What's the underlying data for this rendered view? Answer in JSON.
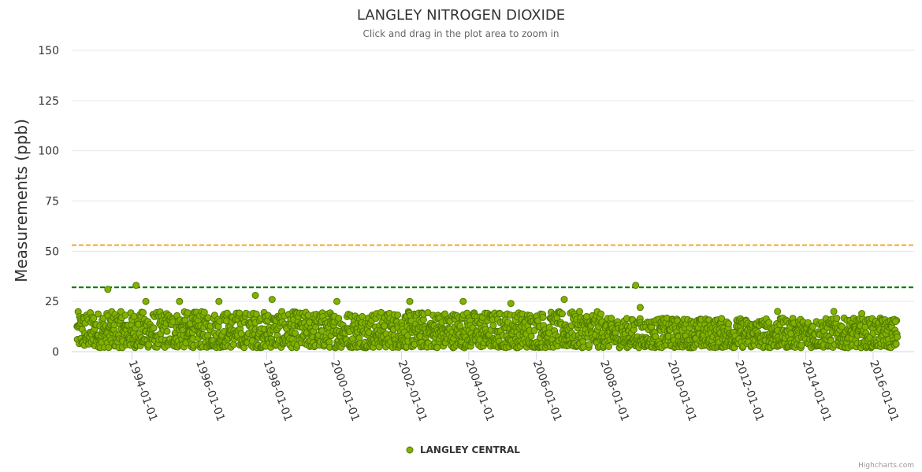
{
  "chart_data": {
    "type": "scatter",
    "title": "LANGLEY NITROGEN DIOXIDE",
    "subtitle": "Click and drag in the plot area to zoom in",
    "ylabel": "Measurements (ppb)",
    "xlabel": "",
    "ylim": [
      0,
      150
    ],
    "yticks": [
      0,
      25,
      50,
      75,
      100,
      125,
      150
    ],
    "xlim": [
      "1992-05-01",
      "2016-10-01"
    ],
    "xticks": [
      "1994-01-01",
      "1996-01-01",
      "1998-01-01",
      "2000-01-01",
      "2002-01-01",
      "2004-01-01",
      "2006-01-01",
      "2008-01-01",
      "2010-01-01",
      "2012-01-01",
      "2014-01-01",
      "2016-01-01"
    ],
    "grid": true,
    "threshold_lines": [
      {
        "value": 53,
        "color": "#f5a623",
        "style": "dashed"
      },
      {
        "value": 32,
        "color": "#007a00",
        "style": "dashed"
      }
    ],
    "series": [
      {
        "name": "LANGLEY CENTRAL",
        "color": "#84b100",
        "stroke": "#4e7a00",
        "description": "daily readings, mostly 2-20 ppb",
        "baseline_range": [
          2,
          20
        ],
        "peaks": [
          {
            "x": "1993-04-15",
            "y": 31
          },
          {
            "x": "1994-02-15",
            "y": 33
          },
          {
            "x": "1994-06-01",
            "y": 25
          },
          {
            "x": "1995-06-01",
            "y": 25
          },
          {
            "x": "1996-08-01",
            "y": 25
          },
          {
            "x": "1997-09-01",
            "y": 28
          },
          {
            "x": "1998-03-01",
            "y": 26
          },
          {
            "x": "2000-02-01",
            "y": 25
          },
          {
            "x": "2002-04-01",
            "y": 25
          },
          {
            "x": "2003-11-01",
            "y": 25
          },
          {
            "x": "2005-04-01",
            "y": 24
          },
          {
            "x": "2006-11-01",
            "y": 26
          },
          {
            "x": "2008-12-15",
            "y": 33
          },
          {
            "x": "2009-02-01",
            "y": 22
          },
          {
            "x": "2013-03-01",
            "y": 20
          },
          {
            "x": "2014-11-01",
            "y": 20
          },
          {
            "x": "2015-09-01",
            "y": 19
          },
          {
            "x": "2016-09-01",
            "y": 15
          }
        ]
      }
    ]
  },
  "legend": {
    "label": "LANGLEY CENTRAL"
  },
  "credits": "Highcharts.com"
}
